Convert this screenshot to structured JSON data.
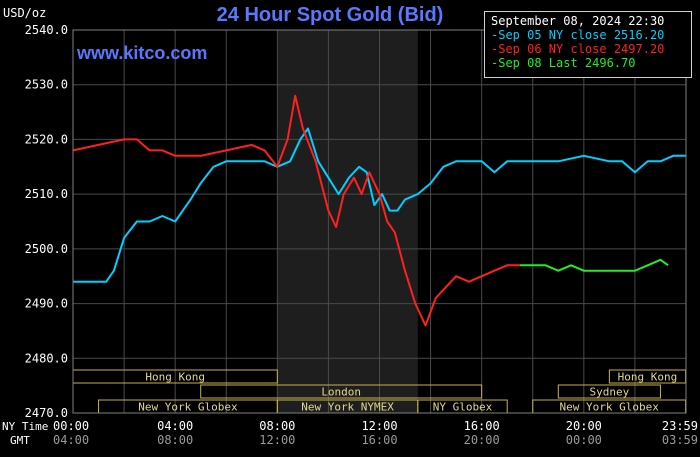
{
  "header": {
    "title": "24 Hour Spot Gold (Bid)",
    "units": "USD/oz",
    "site": "www.kitco.com"
  },
  "legend": {
    "date": "September 08, 2024 22:30",
    "entries": [
      {
        "label": "-Sep 05 NY close 2516.20",
        "color": "#00cfff"
      },
      {
        "label": "-Sep 06 NY close 2497.20",
        "color": "#ff2020"
      },
      {
        "label": "-Sep 08 Last 2496.70",
        "color": "#22ee22"
      }
    ]
  },
  "markets": {
    "row1": [
      {
        "name": "Hong Kong",
        "start": "00:00",
        "end": "08:00"
      },
      {
        "name": "Hong Kong",
        "start": "21:00",
        "end": "23:59"
      }
    ],
    "row2": [
      {
        "name": "London",
        "start": "05:00",
        "end": "16:00"
      },
      {
        "name": "Sydney",
        "start": "19:00",
        "end": "23:00"
      }
    ],
    "row3": [
      {
        "name": "New York Globex",
        "start": "01:00",
        "end": "08:00"
      },
      {
        "name": "New York NYMEX",
        "start": "08:00",
        "end": "13:30"
      },
      {
        "name": "NY Globex",
        "start": "13:30",
        "end": "17:00"
      },
      {
        "name": "New York Globex",
        "start": "18:00",
        "end": "23:59"
      }
    ]
  },
  "time_labels": {
    "ny_label": "NY Time",
    "gmt_label": "GMT",
    "ny": [
      "00:00",
      "04:00",
      "08:00",
      "12:00",
      "16:00",
      "20:00",
      "23:59"
    ],
    "gmt": [
      "04:00",
      "08:00",
      "12:00",
      "16:00",
      "20:00",
      "00:00",
      "03:59"
    ]
  },
  "chart_data": {
    "type": "line",
    "title": "24 Hour Spot Gold (Bid)",
    "ylabel": "USD/oz",
    "ylim": [
      2470,
      2540
    ],
    "xlim": [
      0,
      24
    ],
    "yticks": [
      "2540.0",
      "2530.0",
      "2520.0",
      "2510.0",
      "2500.0",
      "2490.0",
      "2480.0",
      "2470.0"
    ],
    "grid": true,
    "shaded_region_hours": [
      8,
      13.5
    ],
    "series": [
      {
        "name": "Sep 05 NY close 2516.20",
        "color": "#00cfff",
        "points": [
          [
            0,
            2494
          ],
          [
            0.5,
            2494
          ],
          [
            1,
            2494
          ],
          [
            1.3,
            2494
          ],
          [
            1.6,
            2496
          ],
          [
            2,
            2502
          ],
          [
            2.5,
            2505
          ],
          [
            3,
            2505
          ],
          [
            3.5,
            2506
          ],
          [
            4,
            2505
          ],
          [
            4.3,
            2507
          ],
          [
            4.6,
            2509
          ],
          [
            5,
            2512
          ],
          [
            5.5,
            2515
          ],
          [
            6,
            2516
          ],
          [
            6.5,
            2516
          ],
          [
            7,
            2516
          ],
          [
            7.5,
            2516
          ],
          [
            8,
            2515
          ],
          [
            8.5,
            2516
          ],
          [
            8.9,
            2520
          ],
          [
            9.2,
            2522
          ],
          [
            9.6,
            2516
          ],
          [
            10,
            2513
          ],
          [
            10.4,
            2510
          ],
          [
            10.8,
            2513
          ],
          [
            11.2,
            2515
          ],
          [
            11.5,
            2514
          ],
          [
            11.8,
            2508
          ],
          [
            12.1,
            2510
          ],
          [
            12.4,
            2507
          ],
          [
            12.7,
            2507
          ],
          [
            13,
            2509
          ],
          [
            13.5,
            2510
          ],
          [
            14,
            2512
          ],
          [
            14.5,
            2515
          ],
          [
            15,
            2516
          ],
          [
            16,
            2516
          ],
          [
            16.5,
            2514
          ],
          [
            17,
            2516
          ],
          [
            18,
            2516
          ],
          [
            18.5,
            2516
          ],
          [
            19,
            2516
          ],
          [
            20,
            2517
          ],
          [
            21,
            2516
          ],
          [
            21.5,
            2516
          ],
          [
            22,
            2514
          ],
          [
            22.5,
            2516
          ],
          [
            23,
            2516
          ],
          [
            23.5,
            2517
          ],
          [
            23.99,
            2517
          ]
        ]
      },
      {
        "name": "Sep 06 NY close 2497.20",
        "color": "#ff2020",
        "points": [
          [
            0,
            2518
          ],
          [
            1,
            2519
          ],
          [
            2,
            2520
          ],
          [
            2.5,
            2520
          ],
          [
            3,
            2518
          ],
          [
            3.5,
            2518
          ],
          [
            4,
            2517
          ],
          [
            5,
            2517
          ],
          [
            6,
            2518
          ],
          [
            7,
            2519
          ],
          [
            7.5,
            2518
          ],
          [
            8,
            2515
          ],
          [
            8.4,
            2520
          ],
          [
            8.7,
            2528
          ],
          [
            9,
            2522
          ],
          [
            9.5,
            2516
          ],
          [
            10,
            2507
          ],
          [
            10.3,
            2504
          ],
          [
            10.6,
            2510
          ],
          [
            11,
            2513
          ],
          [
            11.3,
            2510
          ],
          [
            11.6,
            2514
          ],
          [
            12,
            2510
          ],
          [
            12.3,
            2505
          ],
          [
            12.6,
            2503
          ],
          [
            13,
            2496
          ],
          [
            13.4,
            2490
          ],
          [
            13.8,
            2486
          ],
          [
            14.2,
            2491
          ],
          [
            14.6,
            2493
          ],
          [
            15,
            2495
          ],
          [
            15.5,
            2494
          ],
          [
            16,
            2495
          ],
          [
            16.5,
            2496
          ],
          [
            17,
            2497
          ],
          [
            17.5,
            2497
          ]
        ]
      },
      {
        "name": "Sep 08 Last 2496.70",
        "color": "#22ee22",
        "points": [
          [
            17.5,
            2497
          ],
          [
            18,
            2497
          ],
          [
            18.5,
            2497
          ],
          [
            19,
            2496
          ],
          [
            19.5,
            2497
          ],
          [
            20,
            2496
          ],
          [
            20.5,
            2496
          ],
          [
            21,
            2496
          ],
          [
            21.5,
            2496
          ],
          [
            22,
            2496
          ],
          [
            22.5,
            2497
          ],
          [
            23,
            2498
          ],
          [
            23.3,
            2497
          ]
        ]
      }
    ]
  }
}
